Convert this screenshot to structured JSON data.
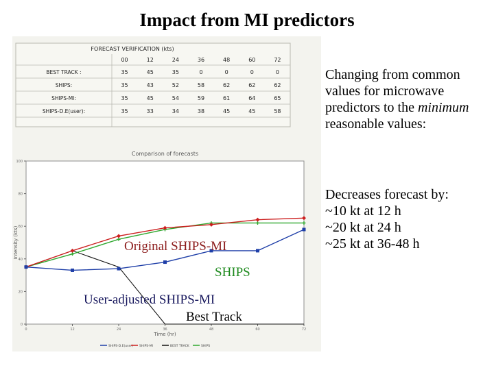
{
  "slide": {
    "title": "Impact from MI predictors"
  },
  "side_text": {
    "para1_before": "Changing from common values for microwave predictors to the ",
    "para1_emph": "minimum",
    "para1_after": " reasonable values:",
    "para2_lines": [
      "Decreases forecast by:",
      "~10 kt at 12 h",
      "~20 kt at 24 h",
      "~25 kt at 36-48 h"
    ]
  },
  "colors": {
    "figure_bg": "#ffffff",
    "panel_bg": "#f3f3ee",
    "table_border": "#b8b8b0",
    "chart_border": "#8c8c8c",
    "series_user": "#1f3fa8",
    "series_mi": "#cc1f1f",
    "series_best": "#111111",
    "series_ships": "#2fa82f",
    "label_original": "#8b1a1a",
    "label_ships": "#1e8a1e",
    "label_user": "#16165c",
    "label_best": "#000000"
  },
  "table": {
    "title": "FORECAST VERIFICATION (kts)",
    "columns": [
      "00",
      "12",
      "24",
      "36",
      "48",
      "60",
      "72"
    ],
    "rows": [
      {
        "label": "BEST TRACK :",
        "values": [
          "35",
          "45",
          "35",
          "0",
          "0",
          "0",
          "0"
        ]
      },
      {
        "label": "SHIPS:",
        "values": [
          "35",
          "43",
          "52",
          "58",
          "62",
          "62",
          "62"
        ]
      },
      {
        "label": "SHIPS-MI:",
        "values": [
          "35",
          "45",
          "54",
          "59",
          "61",
          "64",
          "65"
        ]
      },
      {
        "label": "SHIPS-D.E(user):",
        "values": [
          "35",
          "33",
          "34",
          "38",
          "45",
          "45",
          "58"
        ]
      }
    ]
  },
  "overlay_labels": {
    "original": "Original SHIPS-MI",
    "ships": "SHIPS",
    "user": "User-adjusted SHIPS-MI",
    "best": "Best Track"
  },
  "chart_data": {
    "type": "line",
    "title": "Comparison of forecasts",
    "xlabel": "Time (hr)",
    "ylabel": "Intensity (kts)",
    "x": [
      0,
      12,
      24,
      36,
      48,
      60,
      72
    ],
    "xlim": [
      0,
      72
    ],
    "ylim": [
      0,
      100
    ],
    "grid": false,
    "legend_position": "bottom",
    "series": [
      {
        "name": "SHIPS-D.E(user)",
        "values": [
          35,
          33,
          34,
          38,
          45,
          45,
          58
        ]
      },
      {
        "name": "SHIPS-MI",
        "values": [
          35,
          45,
          54,
          59,
          61,
          64,
          65
        ]
      },
      {
        "name": "BEST TRACK",
        "values": [
          35,
          45,
          35,
          0,
          0,
          0,
          0
        ]
      },
      {
        "name": "SHIPS",
        "values": [
          35,
          43,
          52,
          58,
          62,
          62,
          62
        ]
      }
    ]
  }
}
